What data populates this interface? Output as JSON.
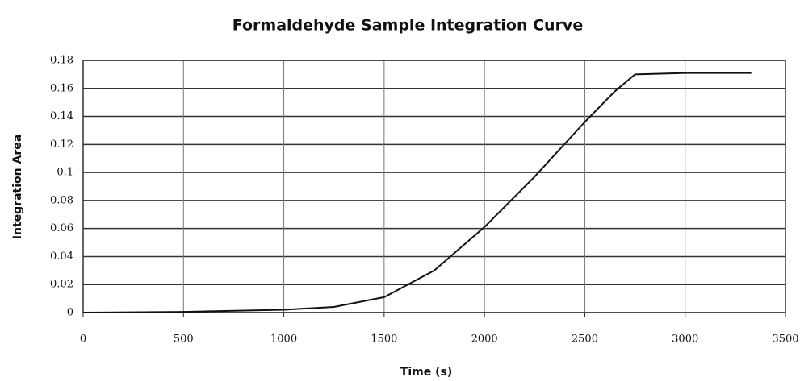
{
  "chart_data": {
    "type": "line",
    "title": "Formaldehyde Sample Integration Curve",
    "x_label": "Time (s)",
    "y_label": "Integration Area",
    "x": [
      0,
      500,
      1000,
      1250,
      1500,
      1750,
      2000,
      2250,
      2500,
      2650,
      2750,
      3000,
      3330
    ],
    "values": [
      0,
      0.0005,
      0.002,
      0.004,
      0.011,
      0.03,
      0.061,
      0.097,
      0.136,
      0.158,
      0.17,
      0.171,
      0.171
    ],
    "color": "#111111",
    "xlim": [
      0,
      3500
    ],
    "xticks": [
      0,
      500,
      1000,
      1500,
      2000,
      2500,
      3000,
      3500
    ],
    "ylim": [
      0,
      0.18
    ],
    "yticks": [
      0,
      0.02,
      0.04,
      0.06,
      0.08,
      0.1,
      0.12,
      0.14,
      0.16,
      0.18
    ],
    "grid": true
  }
}
